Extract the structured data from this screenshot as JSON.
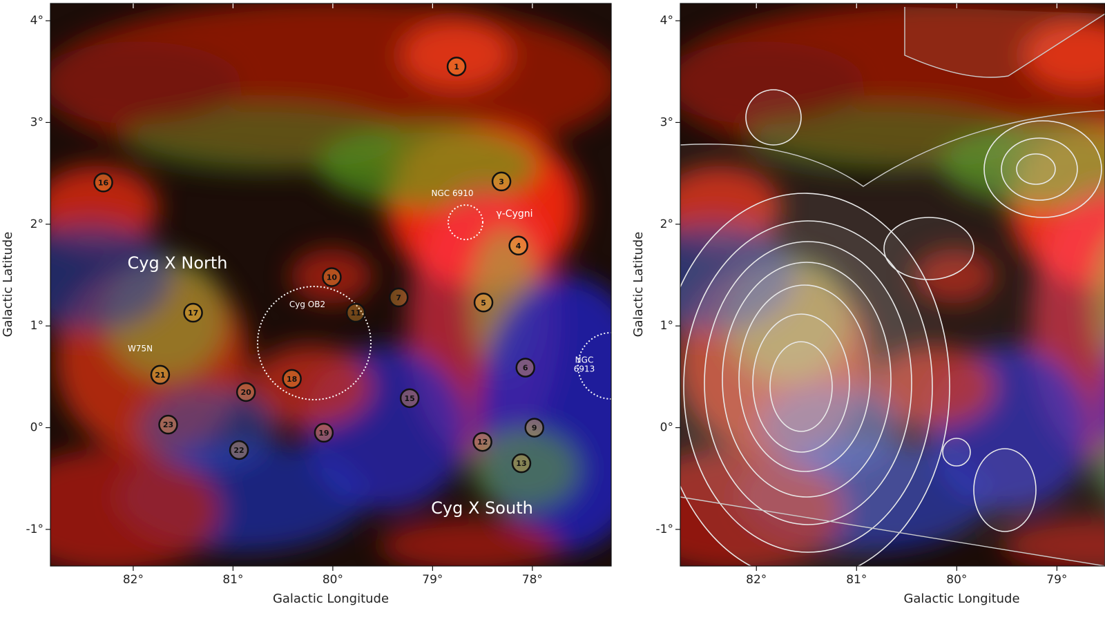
{
  "panels": [
    {
      "xlabel": "Galactic Longitude",
      "ylabel": "Galactic Latitude",
      "xlim": [
        82.83,
        77.21
      ],
      "ylim": [
        -1.36,
        4.17
      ],
      "xticks": [
        {
          "value": 82,
          "label": "82°"
        },
        {
          "value": 81,
          "label": "81°"
        },
        {
          "value": 80,
          "label": "80°"
        },
        {
          "value": 79,
          "label": "79°"
        },
        {
          "value": 78,
          "label": "78°"
        }
      ],
      "yticks": [
        {
          "value": -1,
          "label": "-1°"
        },
        {
          "value": 0,
          "label": "0°"
        },
        {
          "value": 1,
          "label": "1°"
        },
        {
          "value": 2,
          "label": "2°"
        },
        {
          "value": 3,
          "label": "3°"
        },
        {
          "value": 4,
          "label": "4°"
        }
      ],
      "annotations": [
        "Cyg X North",
        "Cyg X South",
        "NGC 6910",
        "γ-Cygni",
        "Cyg OB2",
        "W75N",
        "NGC\n6913"
      ],
      "sources": [
        {
          "label": "1",
          "l": 78.76,
          "b": 3.55
        },
        {
          "label": "16",
          "l": 82.3,
          "b": 2.41
        },
        {
          "label": "3",
          "l": 78.31,
          "b": 2.42
        },
        {
          "label": "4",
          "l": 78.14,
          "b": 1.79
        },
        {
          "label": "10",
          "l": 80.01,
          "b": 1.48
        },
        {
          "label": "7",
          "l": 79.34,
          "b": 1.28
        },
        {
          "label": "5",
          "l": 78.49,
          "b": 1.23
        },
        {
          "label": "17",
          "l": 81.4,
          "b": 1.13
        },
        {
          "label": "11",
          "l": 79.77,
          "b": 1.13
        },
        {
          "label": "6",
          "l": 78.07,
          "b": 0.59
        },
        {
          "label": "21",
          "l": 81.73,
          "b": 0.52
        },
        {
          "label": "18",
          "l": 80.41,
          "b": 0.48
        },
        {
          "label": "20",
          "l": 80.87,
          "b": 0.35
        },
        {
          "label": "15",
          "l": 79.23,
          "b": 0.29
        },
        {
          "label": "23",
          "l": 81.65,
          "b": 0.03
        },
        {
          "label": "9",
          "l": 77.98,
          "b": 0.0
        },
        {
          "label": "19",
          "l": 80.09,
          "b": -0.05
        },
        {
          "label": "12",
          "l": 78.5,
          "b": -0.14
        },
        {
          "label": "22",
          "l": 80.94,
          "b": -0.22
        },
        {
          "label": "13",
          "l": 78.11,
          "b": -0.35
        }
      ]
    },
    {
      "xlabel": "Galactic Longitude",
      "ylabel": "Galactic Latitude",
      "xlim": [
        82.76,
        78.52
      ],
      "ylim": [
        -1.36,
        4.17
      ],
      "xticks": [
        {
          "value": 82,
          "label": "82°"
        },
        {
          "value": 81,
          "label": "81°"
        },
        {
          "value": 80,
          "label": "80°"
        },
        {
          "value": 79,
          "label": "79°"
        }
      ],
      "yticks": [
        {
          "value": -1,
          "label": "-1°"
        },
        {
          "value": 0,
          "label": "0°"
        },
        {
          "value": 1,
          "label": "1°"
        },
        {
          "value": 2,
          "label": "2°"
        },
        {
          "value": 3,
          "label": "3°"
        },
        {
          "value": 4,
          "label": "4°"
        }
      ]
    }
  ]
}
